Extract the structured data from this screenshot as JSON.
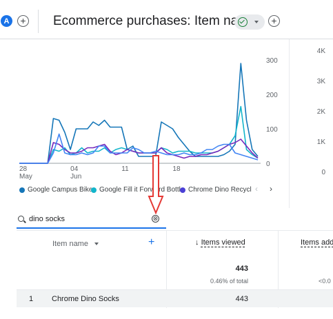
{
  "header": {
    "segment_badge": "A",
    "title": "Ecommerce purchases: Item name"
  },
  "chart_data": {
    "type": "line",
    "x_ticks": [
      {
        "label": "28",
        "sublabel": "May"
      },
      {
        "label": "04",
        "sublabel": "Jun"
      },
      {
        "label": "11",
        "sublabel": ""
      },
      {
        "label": "18",
        "sublabel": ""
      }
    ],
    "y_ticks": [
      "300",
      "200",
      "100",
      "0"
    ],
    "ylim": [
      0,
      300
    ],
    "secondary_y_ticks": [
      "4K",
      "3K",
      "2K",
      "1K",
      "0"
    ],
    "secondary_ylim": [
      0,
      4000
    ],
    "legend_position": "bottom",
    "colors": [
      "#1a73e8",
      "#12b5cb",
      "#7627bb",
      "#4285f4"
    ],
    "series": [
      {
        "name": "Google Campus Bike",
        "color": "#1576b8",
        "values": [
          0,
          0,
          0,
          0,
          0,
          0,
          130,
          125,
          90,
          40,
          100,
          100,
          100,
          120,
          110,
          125,
          105,
          105,
          105,
          40,
          50,
          20,
          20,
          20,
          20,
          120,
          110,
          100,
          75,
          55,
          35,
          20,
          20,
          20,
          20,
          20,
          25,
          35,
          55,
          290,
          125,
          40,
          20
        ]
      },
      {
        "name": "Google Fill it Forward Bottle",
        "color": "#12b5cb",
        "values": [
          0,
          0,
          0,
          0,
          0,
          0,
          40,
          35,
          45,
          25,
          30,
          45,
          30,
          35,
          35,
          45,
          30,
          40,
          45,
          40,
          35,
          30,
          30,
          30,
          30,
          45,
          40,
          30,
          35,
          35,
          35,
          30,
          30,
          30,
          30,
          35,
          45,
          55,
          80,
          165,
          40,
          25,
          15
        ]
      },
      {
        "name": "Chrome Dino Recycled...",
        "color": "#7627bb",
        "values": [
          0,
          0,
          0,
          0,
          0,
          0,
          60,
          55,
          40,
          30,
          30,
          35,
          45,
          45,
          50,
          55,
          35,
          25,
          30,
          40,
          35,
          30,
          30,
          30,
          30,
          45,
          30,
          25,
          20,
          15,
          20,
          20,
          25,
          25,
          30,
          35,
          45,
          55,
          60,
          70,
          50,
          30,
          15
        ]
      },
      {
        "name": "",
        "color": "#4285f4",
        "values": [
          0,
          0,
          0,
          0,
          0,
          0,
          30,
          85,
          30,
          25,
          25,
          30,
          25,
          30,
          50,
          50,
          30,
          30,
          30,
          30,
          45,
          40,
          30,
          30,
          35,
          30,
          25,
          25,
          25,
          30,
          25,
          25,
          30,
          40,
          40,
          50,
          55,
          55,
          30,
          25,
          20,
          15,
          10
        ]
      }
    ],
    "visible_legend": [
      {
        "label": "Google Campus Bike",
        "color": "#1576b8"
      },
      {
        "label": "Google Fill it Forward Bottle",
        "color": "#12b5cb"
      },
      {
        "label": "Chrome Dino Recycl",
        "color": "#4b40d6"
      }
    ]
  },
  "legend_nav": {
    "prev": "‹",
    "next": "›"
  },
  "search": {
    "value": "dino socks",
    "clear_glyph": "⊗"
  },
  "table": {
    "dimension_header": "Item name",
    "add_glyph": "+",
    "metric1_header": "Items viewed",
    "metric1_sort_glyph": "↓",
    "metric2_header": "Items add",
    "totals": {
      "items_viewed": "443",
      "items_viewed_pct": "0.46% of total",
      "items_added_pct": "<0.0"
    },
    "rows": [
      {
        "index": "1",
        "name": "Chrome Dino Socks",
        "items_viewed": "443"
      }
    ]
  }
}
